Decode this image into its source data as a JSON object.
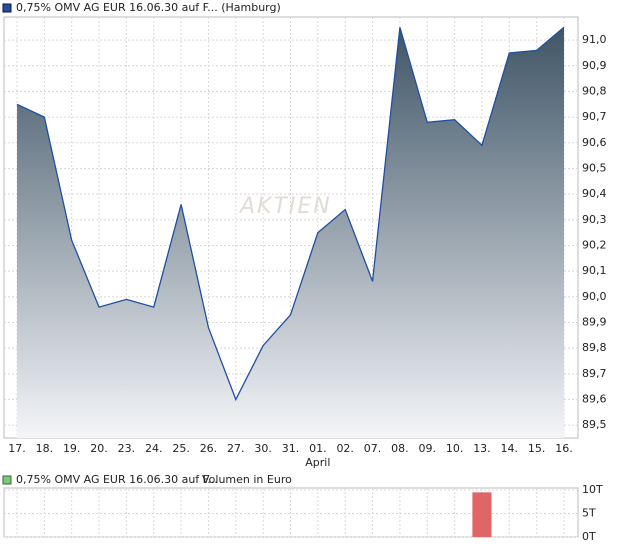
{
  "chart_data": [
    {
      "type": "area",
      "title": "0,75% OMV AG EUR 16.06.30 auf F... (Hamburg)",
      "month_label": "April",
      "watermark": "AKTIEN",
      "categories": [
        "17.",
        "18.",
        "19.",
        "20.",
        "23.",
        "24.",
        "25.",
        "26.",
        "27.",
        "30.",
        "31.",
        "01.",
        "02.",
        "07.",
        "08.",
        "09.",
        "10.",
        "13.",
        "14.",
        "15.",
        "16."
      ],
      "series": [
        {
          "name": "0,75% OMV AG EUR 16.06.30 auf F... (Hamburg)",
          "color": "#1f4fa0",
          "values": [
            90.75,
            90.7,
            90.22,
            89.96,
            89.99,
            89.96,
            90.36,
            89.88,
            89.6,
            89.81,
            89.93,
            90.25,
            90.34,
            90.06,
            91.05,
            90.68,
            90.69,
            90.59,
            90.95,
            90.96,
            91.05
          ]
        }
      ],
      "ylim": [
        89.45,
        91.09
      ],
      "yticks": [
        {
          "value": 89.5,
          "label": "89,5"
        },
        {
          "value": 89.6,
          "label": "89,6"
        },
        {
          "value": 89.7,
          "label": "89,7"
        },
        {
          "value": 89.8,
          "label": "89,8"
        },
        {
          "value": 89.9,
          "label": "89,9"
        },
        {
          "value": 90.0,
          "label": "90,0"
        },
        {
          "value": 90.1,
          "label": "90,1"
        },
        {
          "value": 90.2,
          "label": "90,2"
        },
        {
          "value": 90.3,
          "label": "90,3"
        },
        {
          "value": 90.4,
          "label": "90,4"
        },
        {
          "value": 90.5,
          "label": "90,5"
        },
        {
          "value": 90.6,
          "label": "90,6"
        },
        {
          "value": 90.7,
          "label": "90,7"
        },
        {
          "value": 90.8,
          "label": "90,8"
        },
        {
          "value": 90.9,
          "label": "90,9"
        },
        {
          "value": 91.0,
          "label": "91,0"
        }
      ],
      "grid": true
    },
    {
      "type": "bar",
      "title": "0,75% OMV AG EUR 16.06.30 auf F...",
      "y_label": "Volumen in Euro",
      "series": [
        {
          "name": "0,75% OMV AG EUR 16.06.30 auf F...",
          "color": "#e06666",
          "values": [
            0,
            0,
            0,
            0,
            0,
            0,
            0,
            0,
            0,
            0,
            0,
            0,
            0,
            0,
            0,
            0,
            0,
            9500,
            0,
            0,
            0
          ]
        }
      ],
      "ylim": [
        0,
        10000
      ],
      "yticks": [
        {
          "value": 0,
          "label": "0T"
        },
        {
          "value": 5000,
          "label": "5T"
        },
        {
          "value": 10000,
          "label": "10T"
        }
      ],
      "grid": true
    }
  ]
}
